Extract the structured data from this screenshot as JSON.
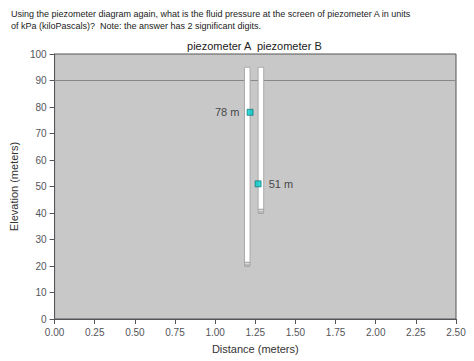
{
  "chart_data": {
    "type": "piezometer",
    "title": "Using the piezometer diagram again, what is the fluid pressure at the screen of piezometer A in units",
    "subtitle": "of kPa (kiloPascals)?  Note: the answer has 2 significant digits.",
    "xlabel": "Distance (meters)",
    "ylabel": "Elevation (meters)",
    "xlim": [
      0,
      2.5
    ],
    "ylim": [
      0,
      100
    ],
    "xticks": [
      {
        "value": 0,
        "label": "0.00"
      },
      0.25,
      {
        "value": 0.5,
        "label": "0.50"
      },
      0.75,
      {
        "value": 1.0,
        "label": "1.00"
      },
      1.25,
      {
        "value": 1.5,
        "label": "1.50"
      },
      1.75,
      {
        "value": 2.0,
        "label": "2.00"
      },
      2.25,
      {
        "value": 2.5,
        "label": "2.50"
      }
    ],
    "yticks": [
      0,
      10,
      20,
      30,
      40,
      50,
      60,
      70,
      80,
      90,
      100
    ],
    "grid": false,
    "background_color": "#c8c8c8",
    "marker": "square",
    "water_table": {
      "y": 90,
      "color": "#888888"
    },
    "piezometers": [
      {
        "name": "piezometer A",
        "x": 1.2,
        "width": 0.035,
        "bottom": 20,
        "top": 95,
        "color": "white",
        "edge_color": "#aaaaaa",
        "screen_lines": [
          20,
          20.7,
          21.4
        ],
        "value": 78,
        "value_label": "78 m",
        "marker_color": "#00cccc",
        "marker_edge_color": "#006666"
      },
      {
        "name": "piezometer B",
        "x": 1.285,
        "width": 0.035,
        "bottom": 40,
        "top": 95,
        "color": "white",
        "edge_color": "#aaaaaa",
        "screen_lines": [
          40,
          40.7,
          41.4
        ],
        "value": 51,
        "value_label": "51 m",
        "marker_color": "#00cccc",
        "marker_edge_color": "#006666"
      }
    ]
  }
}
